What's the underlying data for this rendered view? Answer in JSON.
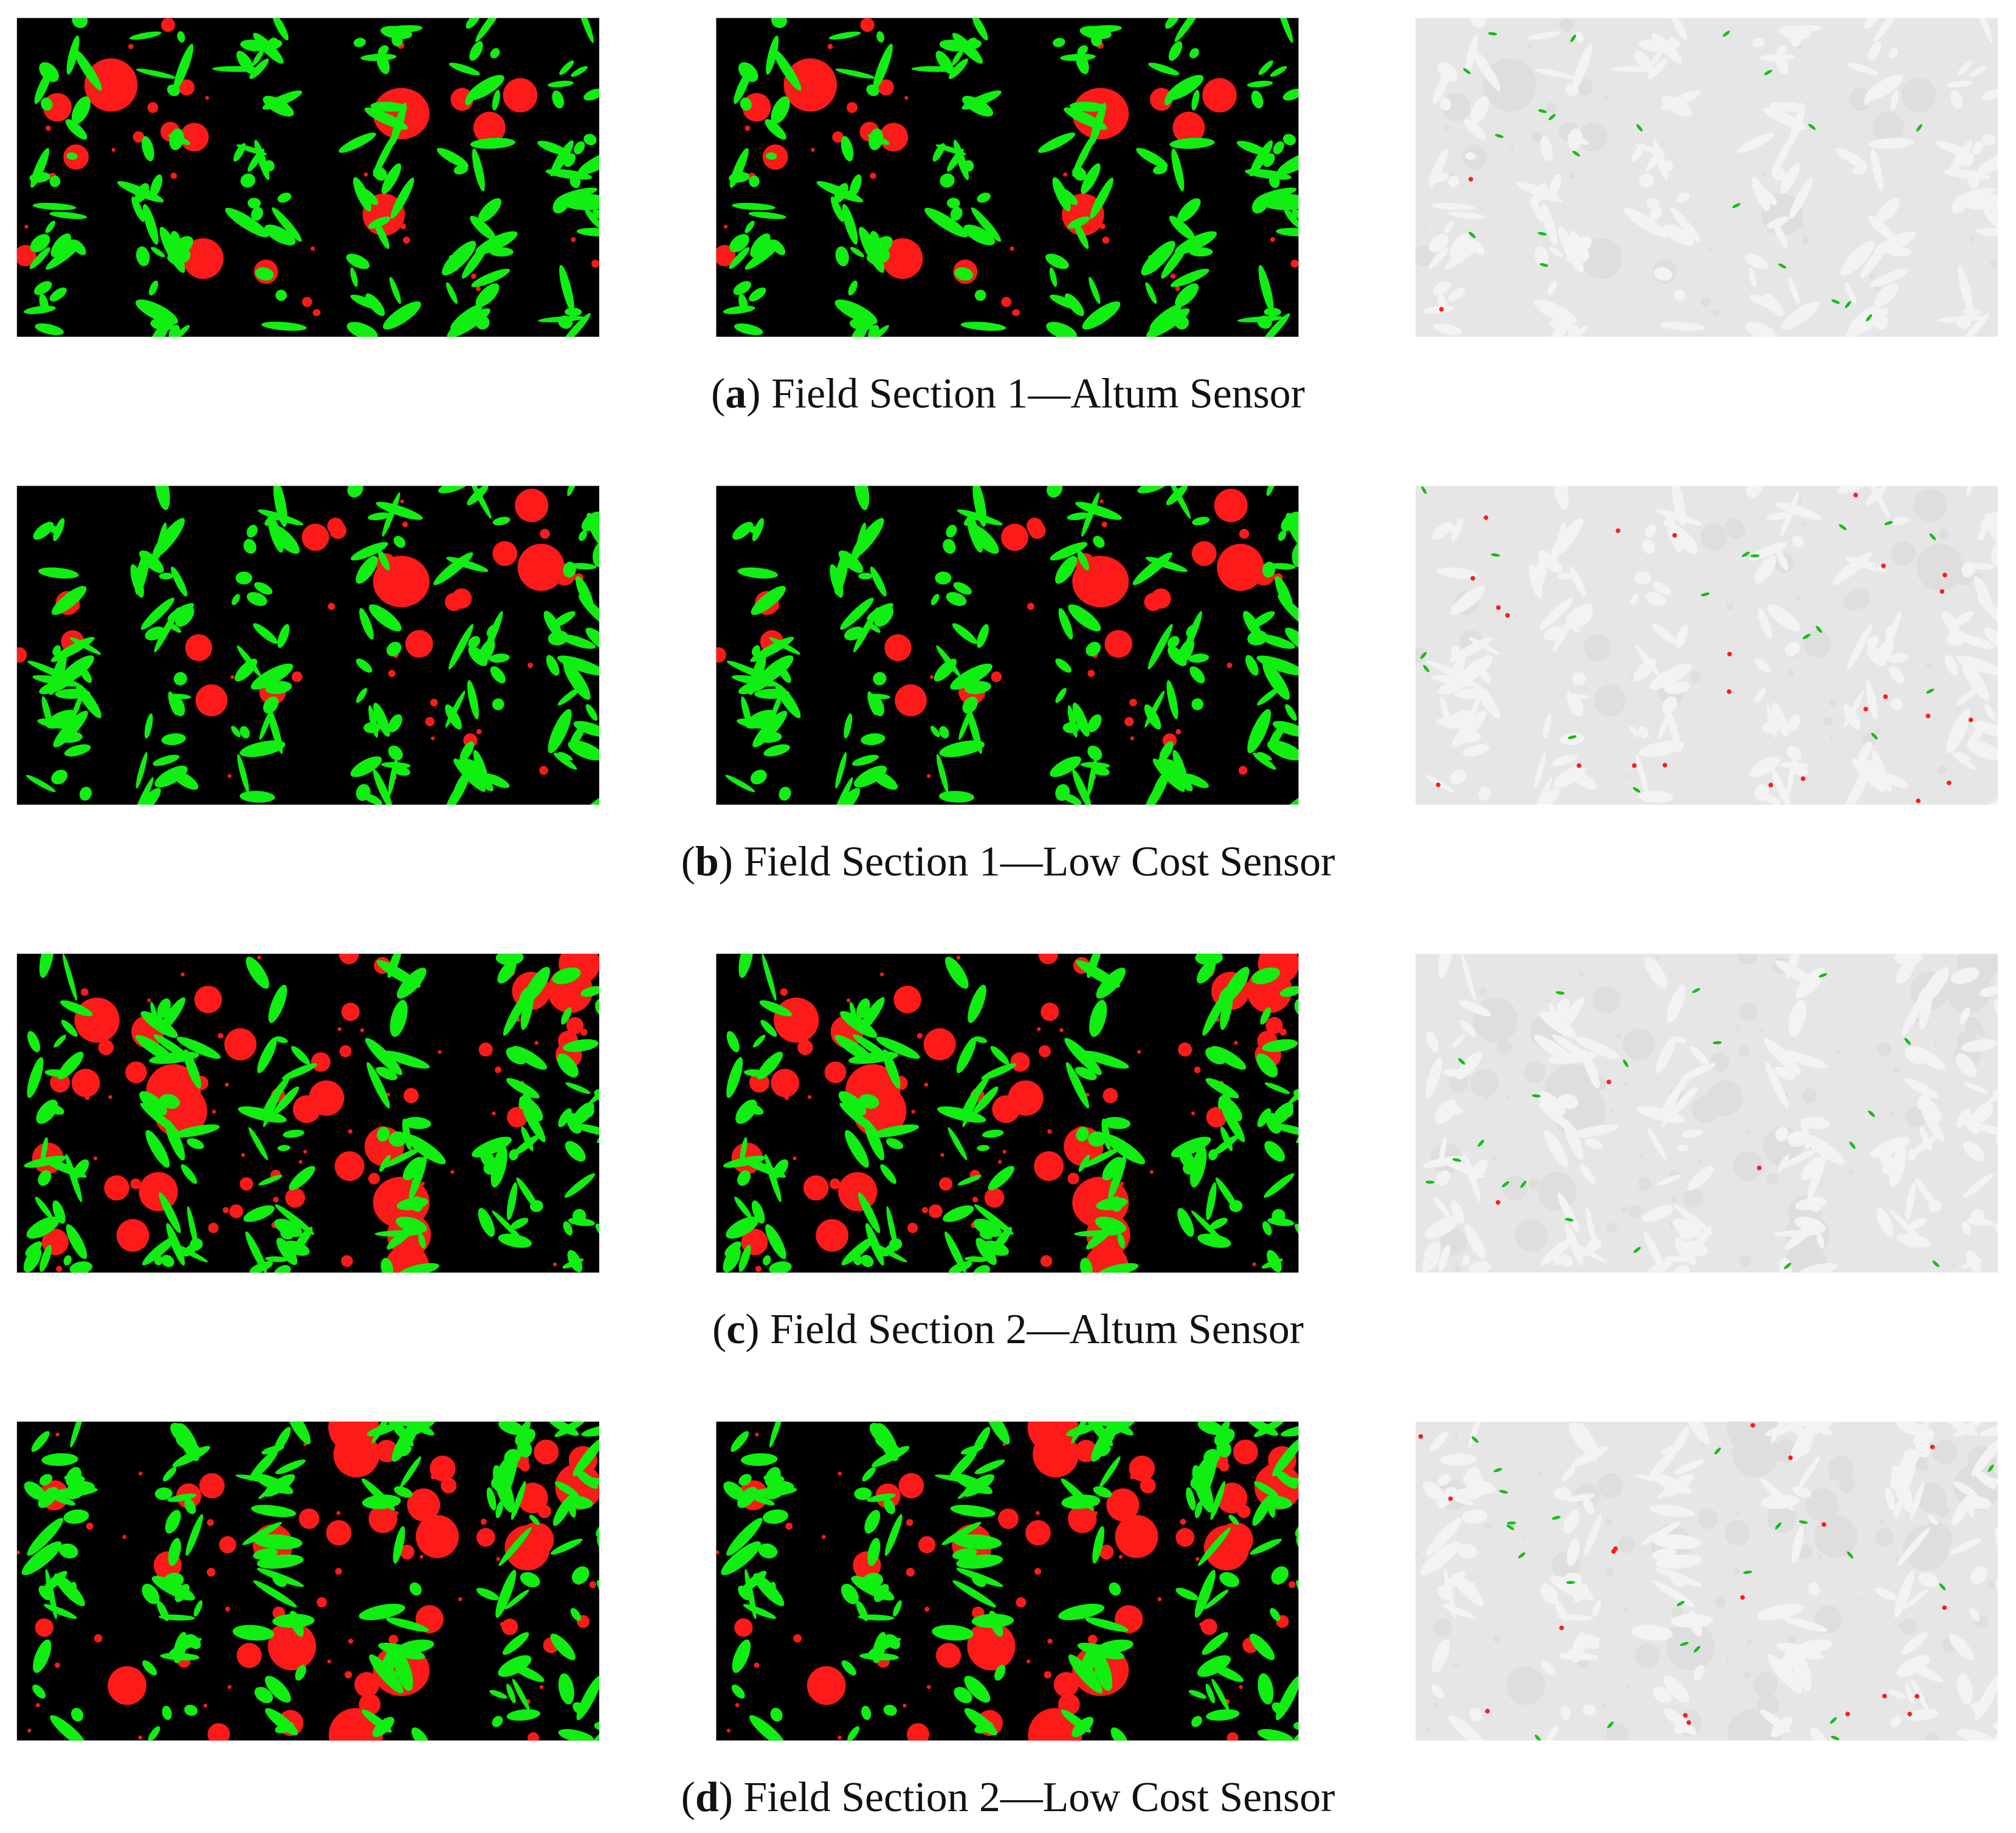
{
  "panels": [
    {
      "open": "(",
      "label": "a",
      "caption": ") Field Section 1—Altum Sensor"
    },
    {
      "open": "(",
      "label": "b",
      "caption": ") Field Section 1—Low Cost Sensor"
    },
    {
      "open": "(",
      "label": "c",
      "caption": ") Field Section 2—Altum Sensor"
    },
    {
      "open": "(",
      "label": "d",
      "caption": ") Field Section 2—Low Cost Sensor"
    }
  ]
}
